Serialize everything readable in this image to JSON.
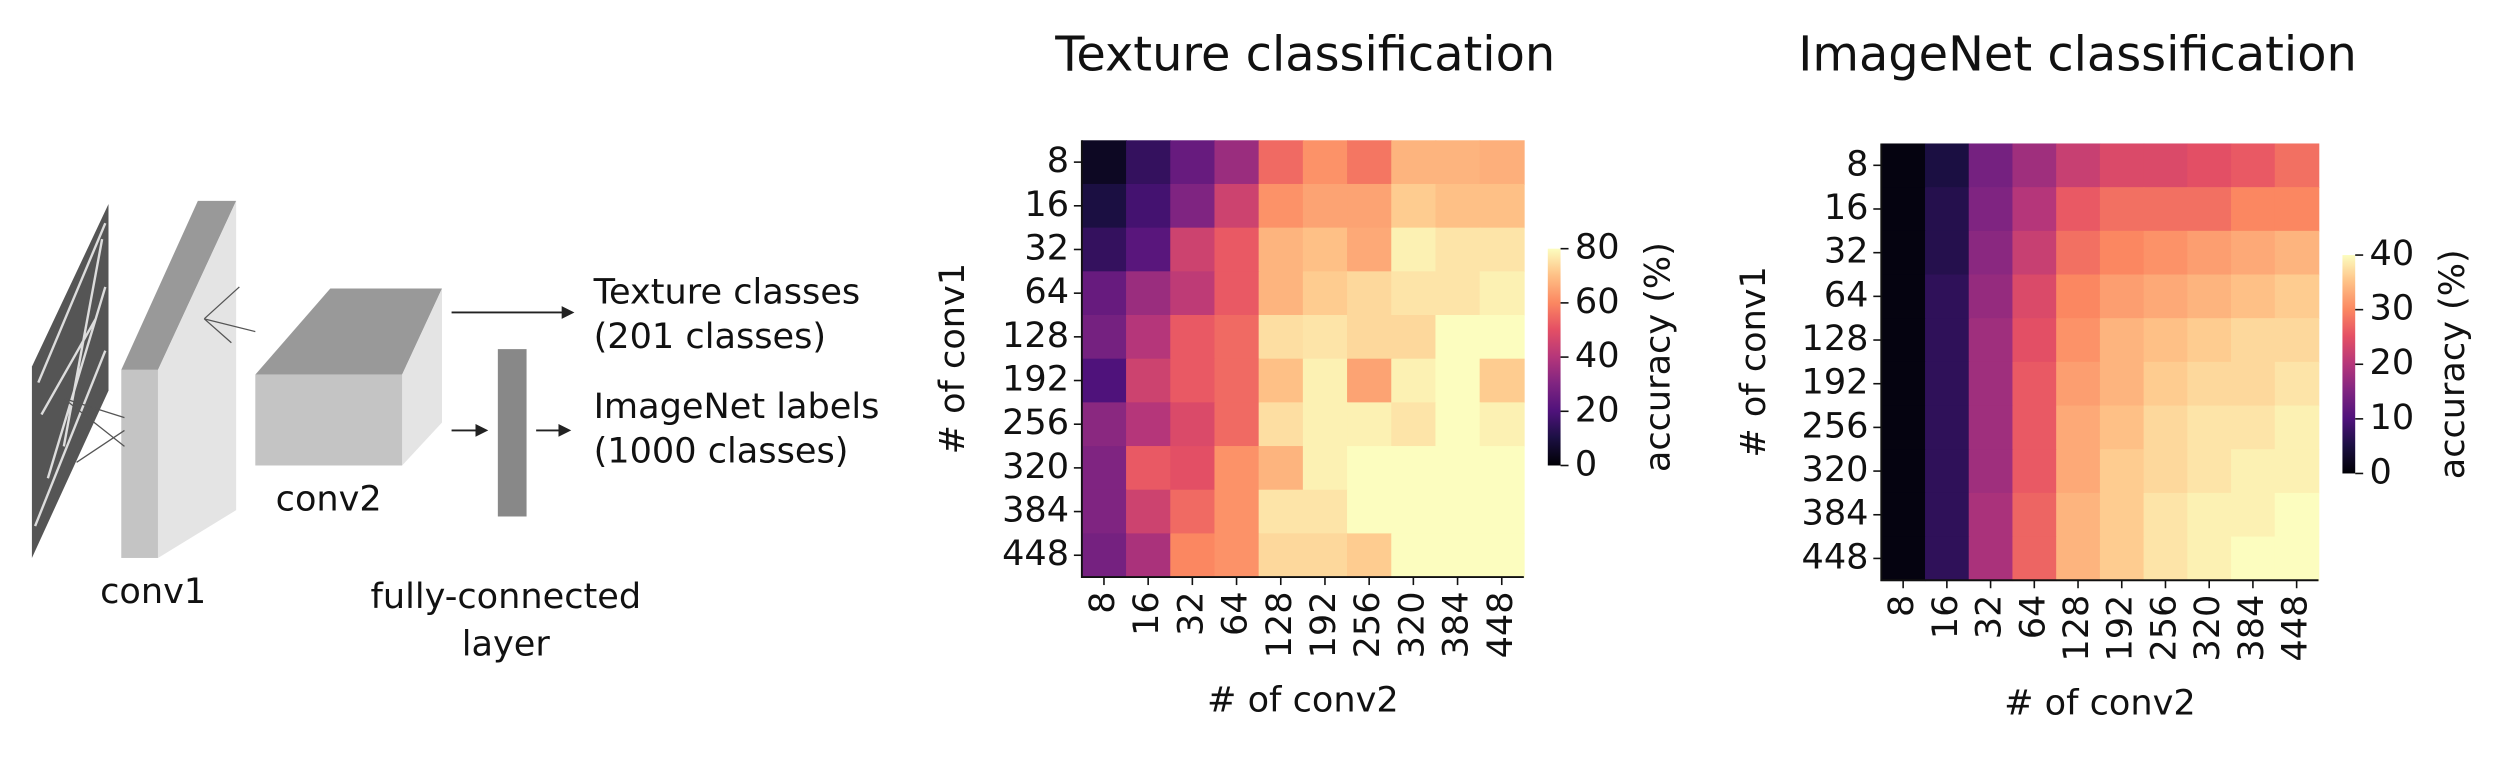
{
  "diagram": {
    "conv1": "conv1",
    "conv2": "conv2",
    "fc_layer": [
      "fully-connected",
      "layer"
    ],
    "outputs": [
      [
        "Texture classes",
        "(201 classes)"
      ],
      [
        "ImageNet labels",
        "(1000 classes)"
      ]
    ]
  },
  "chart_data": [
    {
      "type": "heatmap",
      "title": "Texture classification",
      "xlabel": "# of conv2",
      "ylabel": "# of conv1",
      "x_categories": [
        "8",
        "16",
        "32",
        "64",
        "128",
        "192",
        "256",
        "320",
        "384",
        "448"
      ],
      "y_categories": [
        "8",
        "16",
        "32",
        "64",
        "128",
        "192",
        "256",
        "320",
        "384",
        "448"
      ],
      "values": [
        [
          5,
          15,
          25,
          35,
          55,
          62,
          57,
          68,
          68,
          67
        ],
        [
          10,
          18,
          30,
          45,
          62,
          65,
          65,
          72,
          70,
          70
        ],
        [
          15,
          22,
          45,
          52,
          68,
          70,
          66,
          78,
          76,
          76
        ],
        [
          25,
          35,
          42,
          52,
          68,
          72,
          74,
          76,
          76,
          78
        ],
        [
          28,
          40,
          52,
          55,
          75,
          76,
          74,
          74,
          80,
          80
        ],
        [
          20,
          45,
          52,
          55,
          70,
          78,
          65,
          78,
          80,
          72
        ],
        [
          32,
          40,
          48,
          55,
          75,
          78,
          78,
          76,
          80,
          78
        ],
        [
          30,
          52,
          50,
          62,
          68,
          78,
          80,
          80,
          80,
          80
        ],
        [
          30,
          45,
          55,
          62,
          76,
          76,
          80,
          80,
          80,
          80
        ],
        [
          28,
          38,
          60,
          62,
          74,
          74,
          72,
          80,
          80,
          80
        ]
      ],
      "colormap": "magma",
      "clim": [
        0,
        80
      ],
      "cticks": [
        0,
        20,
        40,
        60,
        80
      ],
      "colorbar_label": "accuracy (%)"
    },
    {
      "type": "heatmap",
      "title": "ImageNet classification",
      "xlabel": "# of conv2",
      "ylabel": "# of conv1",
      "x_categories": [
        "8",
        "16",
        "32",
        "64",
        "128",
        "192",
        "256",
        "320",
        "384",
        "448"
      ],
      "y_categories": [
        "8",
        "16",
        "32",
        "64",
        "128",
        "192",
        "256",
        "320",
        "384",
        "448"
      ],
      "values": [
        [
          1,
          5,
          14,
          18,
          22,
          24,
          24,
          25,
          26,
          28
        ],
        [
          1,
          6,
          15,
          20,
          26,
          28,
          28,
          28,
          30,
          30
        ],
        [
          1,
          6,
          16,
          22,
          28,
          30,
          31,
          32,
          33,
          34
        ],
        [
          1,
          7,
          17,
          24,
          30,
          32,
          33,
          34,
          35,
          36
        ],
        [
          1,
          7,
          18,
          25,
          31,
          34,
          35,
          36,
          37,
          37
        ],
        [
          1,
          7,
          18,
          26,
          32,
          34,
          36,
          37,
          37,
          38
        ],
        [
          1,
          7,
          18,
          26,
          33,
          35,
          37,
          38,
          38,
          39
        ],
        [
          1,
          7,
          18,
          26,
          33,
          36,
          37,
          38,
          39,
          39
        ],
        [
          1,
          7,
          19,
          27,
          34,
          36,
          38,
          39,
          39,
          40
        ],
        [
          1,
          7,
          19,
          27,
          34,
          36,
          38,
          39,
          40,
          40
        ]
      ],
      "colormap": "magma",
      "clim": [
        0,
        40
      ],
      "cticks": [
        0,
        10,
        20,
        30,
        40
      ],
      "colorbar_label": "accuracy (%)"
    }
  ]
}
